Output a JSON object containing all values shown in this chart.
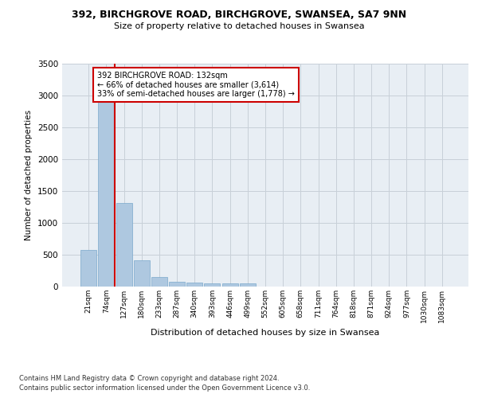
{
  "title_line1": "392, BIRCHGROVE ROAD, BIRCHGROVE, SWANSEA, SA7 9NN",
  "title_line2": "Size of property relative to detached houses in Swansea",
  "xlabel": "Distribution of detached houses by size in Swansea",
  "ylabel": "Number of detached properties",
  "categories": [
    "21sqm",
    "74sqm",
    "127sqm",
    "180sqm",
    "233sqm",
    "287sqm",
    "340sqm",
    "393sqm",
    "446sqm",
    "499sqm",
    "552sqm",
    "605sqm",
    "658sqm",
    "711sqm",
    "764sqm",
    "818sqm",
    "871sqm",
    "924sqm",
    "977sqm",
    "1030sqm",
    "1083sqm"
  ],
  "bar_values": [
    570,
    2910,
    1310,
    415,
    155,
    80,
    60,
    55,
    45,
    45,
    0,
    0,
    0,
    0,
    0,
    0,
    0,
    0,
    0,
    0,
    0
  ],
  "bar_color": "#aec8e0",
  "bar_edge_color": "#7aa8cc",
  "ylim": [
    0,
    3500
  ],
  "yticks": [
    0,
    500,
    1000,
    1500,
    2000,
    2500,
    3000,
    3500
  ],
  "property_line_x": 2,
  "annotation_text": "392 BIRCHGROVE ROAD: 132sqm\n← 66% of detached houses are smaller (3,614)\n33% of semi-detached houses are larger (1,778) →",
  "annotation_box_color": "#cc0000",
  "footer_line1": "Contains HM Land Registry data © Crown copyright and database right 2024.",
  "footer_line2": "Contains public sector information licensed under the Open Government Licence v3.0.",
  "grid_color": "#c8d0d8",
  "background_color": "#e8eef4"
}
